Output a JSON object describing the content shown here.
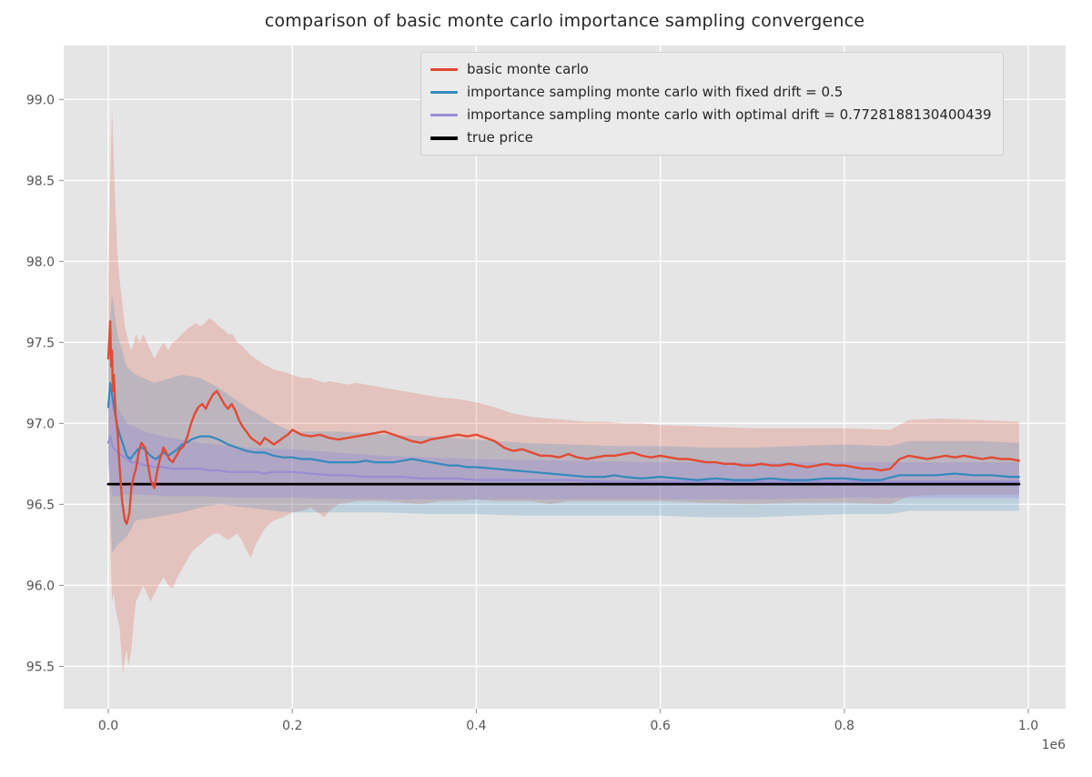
{
  "title": "comparison of basic monte carlo importance sampling convergence",
  "legend": {
    "position": "upper center-right",
    "items": [
      {
        "label": "basic monte carlo"
      },
      {
        "label": "importance sampling monte carlo with fixed drift = 0.5"
      },
      {
        "label": "importance sampling monte carlo with optimal drift = 0.7728188130400439"
      },
      {
        "label": "true price"
      }
    ]
  },
  "chart_data": {
    "type": "line",
    "title": "comparison of basic monte carlo importance sampling convergence",
    "xlabel": "",
    "ylabel": "",
    "grid": true,
    "x_unit_multiplier": 1000000,
    "style": {
      "plot_bg": "#e5e5e5",
      "grid_color": "#ffffff",
      "tick_color": "#555555",
      "figure_bg": "#ffffff"
    },
    "x_axis": {
      "range": [
        -0.0485,
        1.0405
      ],
      "ticks": [
        0.0,
        0.2,
        0.4,
        0.6,
        0.8,
        1.0
      ],
      "tick_labels": [
        "0.0",
        "0.2",
        "0.4",
        "0.6",
        "0.8",
        "1.0"
      ],
      "offset_label": "1e6"
    },
    "y_axis": {
      "range": [
        95.238,
        99.333
      ],
      "ticks": [
        95.5,
        96.0,
        96.5,
        97.0,
        97.5,
        98.0,
        98.5,
        99.0
      ],
      "tick_labels": [
        "95.5",
        "96.0",
        "96.5",
        "97.0",
        "97.5",
        "98.0",
        "98.5",
        "99.0"
      ]
    },
    "true_price": 96.625,
    "series": [
      {
        "name": "basic monte carlo",
        "color": "#E24A33",
        "line_width": 2.4,
        "x": [
          0,
          0.002,
          0.003,
          0.004,
          0.005,
          0.006,
          0.008,
          0.01,
          0.012,
          0.015,
          0.018,
          0.02,
          0.023,
          0.025,
          0.028,
          0.03,
          0.033,
          0.036,
          0.04,
          0.043,
          0.046,
          0.05,
          0.053,
          0.056,
          0.06,
          0.063,
          0.066,
          0.07,
          0.074,
          0.078,
          0.082,
          0.086,
          0.09,
          0.094,
          0.098,
          0.102,
          0.106,
          0.11,
          0.114,
          0.118,
          0.122,
          0.126,
          0.13,
          0.134,
          0.138,
          0.142,
          0.146,
          0.15,
          0.155,
          0.16,
          0.165,
          0.17,
          0.175,
          0.18,
          0.185,
          0.19,
          0.195,
          0.2,
          0.21,
          0.22,
          0.23,
          0.24,
          0.25,
          0.26,
          0.27,
          0.28,
          0.29,
          0.3,
          0.31,
          0.32,
          0.33,
          0.34,
          0.35,
          0.36,
          0.37,
          0.38,
          0.39,
          0.4,
          0.41,
          0.42,
          0.43,
          0.44,
          0.45,
          0.46,
          0.47,
          0.48,
          0.49,
          0.5,
          0.51,
          0.52,
          0.53,
          0.54,
          0.55,
          0.56,
          0.57,
          0.58,
          0.59,
          0.6,
          0.61,
          0.62,
          0.63,
          0.64,
          0.65,
          0.66,
          0.67,
          0.68,
          0.69,
          0.7,
          0.71,
          0.72,
          0.73,
          0.74,
          0.75,
          0.76,
          0.77,
          0.78,
          0.79,
          0.8,
          0.81,
          0.82,
          0.83,
          0.84,
          0.85,
          0.86,
          0.87,
          0.88,
          0.89,
          0.9,
          0.91,
          0.92,
          0.93,
          0.94,
          0.95,
          0.96,
          0.97,
          0.98,
          0.99
        ],
        "y": [
          97.4,
          97.63,
          97.35,
          97.45,
          97.2,
          97.3,
          97.05,
          96.95,
          96.75,
          96.52,
          96.4,
          96.38,
          96.45,
          96.6,
          96.68,
          96.72,
          96.82,
          96.88,
          96.85,
          96.75,
          96.65,
          96.6,
          96.7,
          96.78,
          96.85,
          96.82,
          96.78,
          96.76,
          96.8,
          96.84,
          96.86,
          96.92,
          97.0,
          97.06,
          97.1,
          97.12,
          97.09,
          97.14,
          97.18,
          97.2,
          97.16,
          97.12,
          97.09,
          97.12,
          97.08,
          97.02,
          96.98,
          96.95,
          96.91,
          96.89,
          96.87,
          96.91,
          96.89,
          96.87,
          96.89,
          96.91,
          96.93,
          96.96,
          96.93,
          96.92,
          96.93,
          96.91,
          96.9,
          96.91,
          96.92,
          96.93,
          96.94,
          96.95,
          96.93,
          96.91,
          96.89,
          96.88,
          96.9,
          96.91,
          96.92,
          96.93,
          96.92,
          96.93,
          96.91,
          96.89,
          96.85,
          96.83,
          96.84,
          96.82,
          96.8,
          96.8,
          96.79,
          96.81,
          96.79,
          96.78,
          96.79,
          96.8,
          96.8,
          96.81,
          96.82,
          96.8,
          96.79,
          96.8,
          96.79,
          96.78,
          96.78,
          96.77,
          96.76,
          96.76,
          96.75,
          96.75,
          96.74,
          96.74,
          96.75,
          96.74,
          96.74,
          96.75,
          96.74,
          96.73,
          96.74,
          96.75,
          96.74,
          96.74,
          96.73,
          96.72,
          96.72,
          96.71,
          96.72,
          96.78,
          96.8,
          96.79,
          96.78,
          96.79,
          96.8,
          96.79,
          96.8,
          96.79,
          96.78,
          96.79,
          96.78,
          96.78,
          96.77
        ],
        "band": {
          "opacity": 0.22,
          "x": [
            0,
            0.002,
            0.004,
            0.006,
            0.008,
            0.01,
            0.012,
            0.014,
            0.016,
            0.018,
            0.02,
            0.022,
            0.025,
            0.028,
            0.03,
            0.034,
            0.038,
            0.042,
            0.046,
            0.05,
            0.055,
            0.06,
            0.065,
            0.07,
            0.075,
            0.08,
            0.085,
            0.09,
            0.095,
            0.1,
            0.105,
            0.11,
            0.115,
            0.12,
            0.125,
            0.13,
            0.135,
            0.14,
            0.145,
            0.15,
            0.155,
            0.16,
            0.165,
            0.17,
            0.175,
            0.18,
            0.19,
            0.2,
            0.21,
            0.22,
            0.23,
            0.235,
            0.24,
            0.25,
            0.26,
            0.27,
            0.28,
            0.29,
            0.3,
            0.32,
            0.34,
            0.36,
            0.38,
            0.4,
            0.42,
            0.44,
            0.46,
            0.48,
            0.5,
            0.52,
            0.54,
            0.56,
            0.58,
            0.6,
            0.65,
            0.7,
            0.75,
            0.8,
            0.85,
            0.87,
            0.9,
            0.95,
            0.99
          ],
          "lower": [
            96.9,
            96.3,
            95.9,
            95.95,
            95.85,
            95.8,
            95.75,
            95.6,
            95.45,
            95.55,
            95.6,
            95.5,
            95.6,
            95.8,
            95.9,
            95.95,
            96.0,
            95.95,
            95.9,
            95.95,
            96.0,
            96.05,
            96.0,
            95.98,
            96.05,
            96.1,
            96.15,
            96.2,
            96.23,
            96.25,
            96.28,
            96.3,
            96.32,
            96.32,
            96.3,
            96.28,
            96.3,
            96.32,
            96.28,
            96.22,
            96.17,
            96.25,
            96.3,
            96.35,
            96.38,
            96.4,
            96.42,
            96.45,
            96.46,
            96.48,
            96.44,
            96.42,
            96.46,
            96.5,
            96.51,
            96.52,
            96.52,
            96.52,
            96.52,
            96.51,
            96.5,
            96.52,
            96.52,
            96.53,
            96.52,
            96.52,
            96.52,
            96.5,
            96.52,
            96.52,
            96.52,
            96.52,
            96.52,
            96.52,
            96.51,
            96.5,
            96.51,
            96.51,
            96.5,
            96.55,
            96.56,
            96.56,
            96.56
          ],
          "upper": [
            97.9,
            98.5,
            98.95,
            98.6,
            98.3,
            98.05,
            97.9,
            97.8,
            97.7,
            97.6,
            97.55,
            97.5,
            97.45,
            97.5,
            97.55,
            97.5,
            97.55,
            97.5,
            97.45,
            97.4,
            97.45,
            97.5,
            97.45,
            97.5,
            97.52,
            97.55,
            97.58,
            97.6,
            97.62,
            97.6,
            97.62,
            97.65,
            97.63,
            97.6,
            97.58,
            97.55,
            97.55,
            97.5,
            97.48,
            97.45,
            97.42,
            97.4,
            97.38,
            97.36,
            97.35,
            97.33,
            97.32,
            97.3,
            97.28,
            97.28,
            97.26,
            97.25,
            97.26,
            97.25,
            97.24,
            97.25,
            97.24,
            97.23,
            97.22,
            97.2,
            97.18,
            97.16,
            97.15,
            97.13,
            97.1,
            97.06,
            97.04,
            97.03,
            97.02,
            97.01,
            97.01,
            97.0,
            97.0,
            96.99,
            96.98,
            96.97,
            96.97,
            96.97,
            96.96,
            97.02,
            97.03,
            97.02,
            97.01
          ]
        }
      },
      {
        "name": "importance sampling monte carlo with fixed drift = 0.5",
        "color": "#348ABD",
        "line_width": 2.2,
        "x": [
          0,
          0.002,
          0.004,
          0.006,
          0.008,
          0.01,
          0.013,
          0.016,
          0.02,
          0.024,
          0.028,
          0.032,
          0.036,
          0.04,
          0.044,
          0.048,
          0.052,
          0.056,
          0.06,
          0.065,
          0.07,
          0.075,
          0.08,
          0.085,
          0.09,
          0.095,
          0.1,
          0.11,
          0.12,
          0.13,
          0.14,
          0.15,
          0.16,
          0.17,
          0.18,
          0.19,
          0.2,
          0.21,
          0.22,
          0.23,
          0.24,
          0.25,
          0.26,
          0.27,
          0.28,
          0.29,
          0.3,
          0.31,
          0.32,
          0.33,
          0.34,
          0.35,
          0.36,
          0.37,
          0.38,
          0.39,
          0.4,
          0.42,
          0.44,
          0.46,
          0.48,
          0.5,
          0.52,
          0.54,
          0.55,
          0.56,
          0.58,
          0.6,
          0.62,
          0.64,
          0.66,
          0.68,
          0.7,
          0.72,
          0.74,
          0.76,
          0.78,
          0.8,
          0.82,
          0.84,
          0.86,
          0.88,
          0.9,
          0.92,
          0.94,
          0.96,
          0.98,
          0.99
        ],
        "y": [
          97.1,
          97.25,
          97.18,
          97.1,
          97.04,
          96.98,
          96.92,
          96.87,
          96.8,
          96.78,
          96.81,
          96.84,
          96.85,
          96.84,
          96.81,
          96.79,
          96.78,
          96.8,
          96.82,
          96.8,
          96.82,
          96.84,
          96.87,
          96.88,
          96.9,
          96.91,
          96.92,
          96.92,
          96.9,
          96.87,
          96.85,
          96.83,
          96.82,
          96.82,
          96.8,
          96.79,
          96.79,
          96.78,
          96.78,
          96.77,
          96.76,
          96.76,
          96.76,
          96.76,
          96.77,
          96.76,
          96.76,
          96.76,
          96.77,
          96.78,
          96.77,
          96.76,
          96.75,
          96.74,
          96.74,
          96.73,
          96.73,
          96.72,
          96.71,
          96.7,
          96.69,
          96.68,
          96.67,
          96.67,
          96.68,
          96.67,
          96.66,
          96.67,
          96.66,
          96.65,
          96.66,
          96.65,
          96.65,
          96.66,
          96.65,
          96.65,
          96.66,
          96.66,
          96.65,
          96.65,
          96.68,
          96.68,
          96.68,
          96.69,
          96.68,
          96.68,
          96.67,
          96.67
        ],
        "band": {
          "opacity": 0.22,
          "x": [
            0,
            0.004,
            0.01,
            0.02,
            0.03,
            0.05,
            0.08,
            0.1,
            0.12,
            0.15,
            0.18,
            0.2,
            0.25,
            0.3,
            0.35,
            0.4,
            0.45,
            0.5,
            0.55,
            0.6,
            0.65,
            0.7,
            0.75,
            0.8,
            0.85,
            0.87,
            0.9,
            0.95,
            0.99
          ],
          "lower": [
            96.8,
            96.2,
            96.25,
            96.3,
            96.4,
            96.42,
            96.45,
            96.48,
            96.5,
            96.48,
            96.46,
            96.45,
            96.45,
            96.45,
            96.44,
            96.44,
            96.43,
            96.43,
            96.43,
            96.43,
            96.42,
            96.42,
            96.43,
            96.44,
            96.44,
            96.46,
            96.46,
            96.46,
            96.46
          ],
          "upper": [
            97.5,
            97.8,
            97.55,
            97.35,
            97.3,
            97.25,
            97.3,
            97.28,
            97.22,
            97.1,
            97.0,
            96.95,
            96.95,
            96.93,
            96.92,
            96.9,
            96.88,
            96.87,
            96.86,
            96.86,
            96.85,
            96.85,
            96.86,
            96.87,
            96.86,
            96.89,
            96.89,
            96.89,
            96.88
          ]
        }
      },
      {
        "name": "importance sampling monte carlo with optimal drift = 0.7728188130400439",
        "color": "#988ED5",
        "line_width": 2.2,
        "x": [
          0,
          0.002,
          0.005,
          0.01,
          0.015,
          0.02,
          0.025,
          0.03,
          0.035,
          0.04,
          0.045,
          0.05,
          0.06,
          0.07,
          0.08,
          0.09,
          0.1,
          0.11,
          0.12,
          0.13,
          0.14,
          0.15,
          0.16,
          0.17,
          0.18,
          0.19,
          0.2,
          0.22,
          0.24,
          0.26,
          0.28,
          0.3,
          0.32,
          0.34,
          0.36,
          0.38,
          0.4,
          0.44,
          0.48,
          0.5,
          0.54,
          0.58,
          0.6,
          0.64,
          0.68,
          0.7,
          0.74,
          0.78,
          0.8,
          0.84,
          0.88,
          0.9,
          0.94,
          0.99
        ],
        "y": [
          96.88,
          96.92,
          96.85,
          96.82,
          96.8,
          96.78,
          96.76,
          96.76,
          96.75,
          96.74,
          96.74,
          96.73,
          96.73,
          96.72,
          96.72,
          96.72,
          96.72,
          96.71,
          96.71,
          96.7,
          96.7,
          96.7,
          96.7,
          96.69,
          96.7,
          96.7,
          96.7,
          96.69,
          96.68,
          96.68,
          96.67,
          96.67,
          96.67,
          96.66,
          96.66,
          96.66,
          96.65,
          96.65,
          96.65,
          96.65,
          96.64,
          96.64,
          96.64,
          96.64,
          96.64,
          96.64,
          96.64,
          96.64,
          96.64,
          96.64,
          96.64,
          96.64,
          96.64,
          96.64
        ],
        "band": {
          "opacity": 0.38,
          "x": [
            0,
            0.004,
            0.01,
            0.02,
            0.04,
            0.06,
            0.08,
            0.1,
            0.15,
            0.2,
            0.3,
            0.4,
            0.5,
            0.6,
            0.7,
            0.8,
            0.9,
            0.99
          ],
          "lower": [
            96.75,
            96.55,
            96.55,
            96.56,
            96.56,
            96.55,
            96.55,
            96.55,
            96.54,
            96.54,
            96.53,
            96.53,
            96.53,
            96.53,
            96.53,
            96.54,
            96.54,
            96.54
          ],
          "upper": [
            97.1,
            97.25,
            97.1,
            97.0,
            96.95,
            96.92,
            96.9,
            96.88,
            96.85,
            96.84,
            96.8,
            96.78,
            96.77,
            96.76,
            96.76,
            96.76,
            96.76,
            96.76
          ]
        }
      },
      {
        "name": "true price",
        "color": "#000000",
        "line_width": 2.8,
        "x": [
          0,
          0.99
        ],
        "y": [
          96.625,
          96.625
        ]
      }
    ]
  }
}
